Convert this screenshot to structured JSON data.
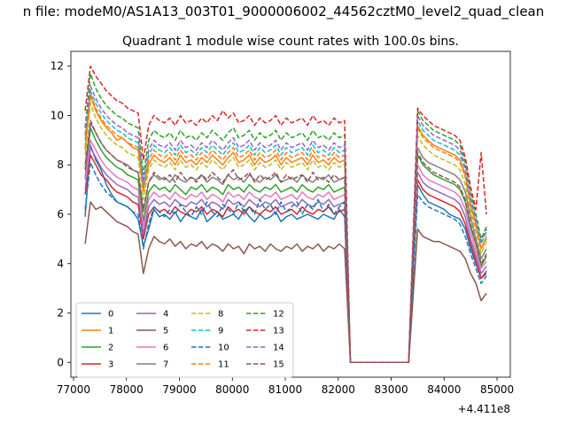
{
  "suptitle": "n file: modeM0/AS1A13_003T01_9000006002_44562cztM0_level2_quad_clean",
  "chart_data": {
    "type": "line",
    "title": "Quadrant 1 module wise count rates with 100.0s bins.",
    "xlabel": "",
    "ylabel": "",
    "x_offset_label": "+4.411e8",
    "xlim": [
      76950,
      85250
    ],
    "ylim": [
      -0.6,
      12.6
    ],
    "x_ticks": [
      77000,
      78000,
      79000,
      80000,
      81000,
      82000,
      83000,
      84000,
      85000
    ],
    "x_tick_labels": [
      "77000",
      "78000",
      "79000",
      "80000",
      "81000",
      "82000",
      "83000",
      "84000",
      "85000"
    ],
    "y_ticks": [
      0,
      2,
      4,
      6,
      8,
      10,
      12
    ],
    "y_tick_labels": [
      "0",
      "2",
      "4",
      "6",
      "8",
      "10",
      "12"
    ],
    "grid": false,
    "legend_position": "lower-left",
    "legend_columns": 4,
    "x": {
      "first_segment": [
        77220,
        82150,
        100
      ],
      "gap": [
        82230,
        83330
      ],
      "second_segment": [
        83500,
        84850,
        100
      ]
    },
    "series": [
      {
        "name": "0",
        "color": "#1f77b4",
        "dash": "solid",
        "seg1": [
          5.9,
          8.8,
          8.2,
          7.8,
          7.2,
          6.8,
          6.5,
          6.4,
          6.3,
          6.1,
          5.8,
          4.7,
          5.4,
          6.2,
          5.9,
          6.0,
          5.8,
          6.1,
          5.7,
          6.0,
          5.9,
          5.8,
          6.2,
          5.7,
          5.9,
          6.1,
          5.8,
          5.9,
          6.0,
          5.8,
          6.2,
          5.9,
          5.7,
          6.0,
          5.8,
          5.9,
          6.1,
          5.7,
          5.9,
          6.0,
          5.8,
          5.9,
          6.0,
          5.9,
          5.8,
          6.0,
          5.9,
          5.8,
          6.2,
          5.9
        ],
        "seg2": [
          7.2,
          6.8,
          6.5,
          6.4,
          6.3,
          6.2,
          6.0,
          5.9,
          5.8,
          5.4,
          4.6,
          4.0,
          3.4,
          3.6
        ]
      },
      {
        "name": "1",
        "color": "#ff7f0e",
        "dash": "solid",
        "seg1": [
          8.6,
          10.8,
          10.2,
          9.8,
          9.5,
          9.3,
          9.0,
          9.1,
          8.9,
          8.7,
          8.6,
          7.0,
          8.0,
          8.4,
          8.2,
          8.1,
          8.3,
          8.0,
          8.4,
          8.1,
          8.2,
          8.0,
          8.3,
          8.1,
          8.4,
          8.2,
          8.0,
          8.3,
          8.5,
          8.1,
          8.2,
          8.4,
          8.0,
          8.3,
          8.1,
          8.2,
          8.4,
          8.0,
          8.3,
          8.1,
          8.2,
          8.3,
          8.0,
          8.4,
          8.1,
          8.2,
          8.0,
          8.3,
          8.1,
          8.2
        ],
        "seg2": [
          9.6,
          9.2,
          9.0,
          8.8,
          8.7,
          8.6,
          8.5,
          8.4,
          8.2,
          7.6,
          6.4,
          5.6,
          4.6,
          5.1
        ]
      },
      {
        "name": "2",
        "color": "#2ca02c",
        "dash": "solid",
        "seg1": [
          7.5,
          9.5,
          9.0,
          8.6,
          8.3,
          8.1,
          7.9,
          7.8,
          7.6,
          7.5,
          7.4,
          5.7,
          6.9,
          7.2,
          7.0,
          7.1,
          6.9,
          7.2,
          7.0,
          6.8,
          7.1,
          7.0,
          7.2,
          6.9,
          7.1,
          7.0,
          6.8,
          7.2,
          7.0,
          7.1,
          6.9,
          7.2,
          7.0,
          6.9,
          7.1,
          7.0,
          7.2,
          6.9,
          7.0,
          7.1,
          6.9,
          7.2,
          7.0,
          6.9,
          7.1,
          7.0,
          7.2,
          6.9,
          7.0,
          7.1
        ],
        "seg2": [
          8.4,
          8.0,
          7.8,
          7.6,
          7.5,
          7.4,
          7.3,
          7.2,
          7.0,
          6.5,
          5.5,
          4.8,
          3.9,
          4.3
        ]
      },
      {
        "name": "3",
        "color": "#d62728",
        "dash": "solid",
        "seg1": [
          6.8,
          8.4,
          8.0,
          7.6,
          7.4,
          7.1,
          6.9,
          6.8,
          6.7,
          6.5,
          6.4,
          5.0,
          6.0,
          6.3,
          6.1,
          6.2,
          6.0,
          6.3,
          6.1,
          6.0,
          6.2,
          6.1,
          6.3,
          6.0,
          6.2,
          6.1,
          5.9,
          6.3,
          6.1,
          6.2,
          6.0,
          6.3,
          6.1,
          6.0,
          6.2,
          6.1,
          6.3,
          6.0,
          6.1,
          6.2,
          6.0,
          6.3,
          6.1,
          6.0,
          6.2,
          6.1,
          6.3,
          6.0,
          6.1,
          6.2
        ],
        "seg2": [
          7.4,
          7.0,
          6.8,
          6.7,
          6.6,
          6.5,
          6.4,
          6.3,
          6.1,
          5.6,
          4.8,
          4.1,
          3.4,
          3.7
        ]
      },
      {
        "name": "4",
        "color": "#9467bd",
        "dash": "solid",
        "seg1": [
          7.0,
          8.7,
          8.3,
          7.9,
          7.6,
          7.4,
          7.2,
          7.1,
          7.0,
          6.8,
          6.7,
          5.2,
          6.3,
          6.6,
          6.4,
          6.5,
          6.3,
          6.6,
          6.4,
          6.3,
          6.5,
          6.4,
          6.6,
          6.3,
          6.5,
          6.4,
          6.2,
          6.6,
          6.4,
          6.5,
          6.3,
          6.6,
          6.4,
          6.3,
          6.5,
          6.4,
          6.6,
          6.3,
          6.4,
          6.5,
          6.3,
          6.6,
          6.4,
          6.3,
          6.5,
          6.4,
          6.6,
          6.3,
          6.4,
          6.5
        ],
        "seg2": [
          7.7,
          7.3,
          7.1,
          7.0,
          6.9,
          6.8,
          6.7,
          6.6,
          6.4,
          5.9,
          5.0,
          4.3,
          3.6,
          3.9
        ]
      },
      {
        "name": "5",
        "color": "#8c564b",
        "dash": "solid",
        "seg1": [
          4.8,
          6.5,
          6.2,
          6.3,
          6.1,
          5.9,
          5.7,
          5.6,
          5.5,
          5.3,
          5.2,
          3.6,
          4.6,
          5.1,
          4.9,
          4.8,
          5.0,
          4.7,
          4.9,
          4.6,
          4.8,
          4.7,
          4.9,
          4.6,
          4.8,
          4.7,
          4.5,
          4.8,
          4.6,
          4.7,
          4.4,
          4.8,
          4.6,
          4.7,
          4.5,
          4.8,
          4.6,
          4.5,
          4.7,
          4.6,
          4.8,
          4.5,
          4.7,
          4.6,
          4.8,
          4.5,
          4.7,
          4.6,
          4.8,
          4.6
        ],
        "seg2": [
          5.4,
          5.1,
          5.0,
          4.9,
          4.9,
          4.8,
          4.7,
          4.6,
          4.5,
          4.2,
          3.6,
          3.2,
          2.5,
          2.8
        ]
      },
      {
        "name": "6",
        "color": "#e377c2",
        "dash": "solid",
        "seg1": [
          7.4,
          9.0,
          8.6,
          8.2,
          7.9,
          7.7,
          7.5,
          7.4,
          7.3,
          7.1,
          7.0,
          5.5,
          6.6,
          6.9,
          6.7,
          6.8,
          6.6,
          6.9,
          6.7,
          6.6,
          6.8,
          6.7,
          6.9,
          6.6,
          6.8,
          6.7,
          6.5,
          6.9,
          6.7,
          6.8,
          6.6,
          6.9,
          6.7,
          6.6,
          6.8,
          6.7,
          6.9,
          6.6,
          6.7,
          6.8,
          6.6,
          6.9,
          6.7,
          6.6,
          6.8,
          6.7,
          6.9,
          6.6,
          6.7,
          6.8
        ],
        "seg2": [
          8.0,
          7.6,
          7.4,
          7.3,
          7.2,
          7.1,
          7.0,
          6.9,
          6.7,
          6.2,
          5.3,
          4.5,
          3.8,
          4.1
        ]
      },
      {
        "name": "7",
        "color": "#7f7f7f",
        "dash": "solid",
        "seg1": [
          8.0,
          9.7,
          9.3,
          8.9,
          8.6,
          8.4,
          8.2,
          8.1,
          8.0,
          7.8,
          7.7,
          6.1,
          7.3,
          7.6,
          7.4,
          7.5,
          7.3,
          7.6,
          7.4,
          7.3,
          7.5,
          7.4,
          7.6,
          7.3,
          7.5,
          7.4,
          7.2,
          7.6,
          7.4,
          7.5,
          7.3,
          7.6,
          7.4,
          7.3,
          7.5,
          7.4,
          7.6,
          7.3,
          7.4,
          7.5,
          7.3,
          7.6,
          7.4,
          7.3,
          7.5,
          7.4,
          7.6,
          7.3,
          7.4,
          7.5
        ],
        "seg2": [
          8.7,
          8.3,
          8.1,
          8.0,
          7.9,
          7.8,
          7.7,
          7.6,
          7.4,
          6.9,
          5.9,
          5.0,
          4.2,
          4.6
        ]
      },
      {
        "name": "8",
        "color": "#bcbd22",
        "dash": "dashed",
        "seg1": [
          8.4,
          10.5,
          9.9,
          9.5,
          9.2,
          9.0,
          8.8,
          8.7,
          8.5,
          8.4,
          8.3,
          6.6,
          7.8,
          8.2,
          8.0,
          7.9,
          8.1,
          7.8,
          8.2,
          7.9,
          8.0,
          7.8,
          8.1,
          7.9,
          8.2,
          8.0,
          7.8,
          8.1,
          8.3,
          7.9,
          8.0,
          8.2,
          7.8,
          8.1,
          7.9,
          8.0,
          8.2,
          7.8,
          8.1,
          7.9,
          8.0,
          8.1,
          7.8,
          8.2,
          7.9,
          8.0,
          7.8,
          8.1,
          7.9,
          8.0
        ],
        "seg2": [
          9.2,
          8.8,
          8.6,
          8.4,
          8.3,
          8.2,
          8.1,
          8.0,
          7.8,
          7.2,
          6.1,
          5.3,
          4.4,
          4.9
        ]
      },
      {
        "name": "9",
        "color": "#17becf",
        "dash": "dashed",
        "seg1": [
          9.0,
          11.0,
          10.5,
          10.1,
          9.8,
          9.6,
          9.4,
          9.3,
          9.1,
          9.0,
          8.9,
          7.1,
          8.4,
          8.8,
          8.6,
          8.5,
          8.7,
          8.4,
          8.8,
          8.5,
          8.6,
          8.4,
          8.7,
          8.5,
          8.8,
          8.6,
          8.4,
          8.7,
          8.9,
          8.5,
          8.6,
          8.8,
          8.4,
          8.7,
          8.5,
          8.6,
          8.8,
          8.4,
          8.7,
          8.5,
          8.6,
          8.7,
          8.4,
          8.8,
          8.5,
          8.6,
          8.4,
          8.7,
          8.5,
          8.6
        ],
        "seg2": [
          9.8,
          9.4,
          9.2,
          9.0,
          8.9,
          8.8,
          8.7,
          8.6,
          8.4,
          7.8,
          6.6,
          5.7,
          4.8,
          5.3
        ]
      },
      {
        "name": "10",
        "color": "#1f77b4",
        "dash": "dashed",
        "seg1": [
          6.2,
          8.1,
          7.6,
          7.2,
          6.9,
          6.7,
          6.5,
          6.4,
          6.3,
          6.1,
          6.0,
          4.6,
          5.6,
          6.3,
          6.1,
          5.9,
          6.2,
          6.0,
          6.4,
          6.1,
          5.9,
          6.3,
          6.0,
          6.5,
          6.1,
          5.9,
          6.4,
          6.2,
          6.0,
          6.5,
          6.1,
          6.3,
          6.0,
          6.6,
          6.2,
          6.4,
          6.0,
          6.5,
          6.1,
          6.3,
          6.5,
          6.0,
          6.4,
          6.2,
          6.6,
          6.1,
          6.4,
          6.0,
          6.3,
          6.5
        ],
        "seg2": [
          6.8,
          6.5,
          6.3,
          6.2,
          6.1,
          6.0,
          5.9,
          5.8,
          5.6,
          5.1,
          4.4,
          3.8,
          3.2,
          3.5
        ]
      },
      {
        "name": "11",
        "color": "#ff7f0e",
        "dash": "dashed",
        "seg1": [
          8.7,
          10.9,
          10.3,
          9.9,
          9.6,
          9.4,
          9.2,
          9.1,
          8.9,
          8.8,
          8.7,
          6.9,
          8.2,
          8.6,
          8.4,
          8.3,
          8.5,
          8.2,
          8.6,
          8.3,
          8.4,
          8.2,
          8.5,
          8.3,
          8.6,
          8.4,
          8.2,
          8.5,
          8.7,
          8.3,
          8.4,
          8.6,
          8.2,
          8.5,
          8.3,
          8.4,
          8.6,
          8.2,
          8.5,
          8.3,
          8.4,
          8.5,
          8.2,
          8.6,
          8.3,
          8.4,
          8.2,
          8.5,
          8.3,
          8.4
        ],
        "seg2": [
          9.5,
          9.1,
          8.9,
          8.7,
          8.6,
          8.5,
          8.4,
          8.3,
          8.1,
          7.5,
          6.3,
          5.5,
          4.6,
          5.0
        ]
      },
      {
        "name": "12",
        "color": "#2ca02c",
        "dash": "dashed",
        "seg1": [
          9.5,
          11.7,
          11.1,
          10.7,
          10.4,
          10.2,
          10.0,
          9.9,
          9.7,
          9.6,
          9.5,
          7.6,
          9.0,
          9.4,
          9.2,
          9.1,
          9.3,
          9.0,
          9.4,
          9.1,
          9.2,
          9.0,
          9.3,
          9.1,
          9.4,
          9.2,
          9.0,
          9.3,
          9.5,
          9.1,
          9.2,
          9.4,
          9.0,
          9.3,
          9.1,
          9.2,
          9.4,
          9.0,
          9.3,
          9.1,
          9.2,
          9.3,
          9.0,
          9.4,
          9.1,
          9.2,
          9.0,
          9.3,
          9.1,
          9.2
        ],
        "seg2": [
          10.2,
          9.8,
          9.6,
          9.4,
          9.3,
          9.2,
          9.1,
          9.0,
          8.8,
          8.1,
          6.9,
          6.0,
          5.0,
          5.5
        ]
      },
      {
        "name": "13",
        "color": "#d62728",
        "dash": "dashed",
        "seg1": [
          10.2,
          12.0,
          11.6,
          11.3,
          11.0,
          10.8,
          10.6,
          10.5,
          10.3,
          10.2,
          10.1,
          8.2,
          9.6,
          10.0,
          9.8,
          9.7,
          9.9,
          9.6,
          10.0,
          9.7,
          9.8,
          9.6,
          9.9,
          9.7,
          10.0,
          9.8,
          10.2,
          9.9,
          10.1,
          9.7,
          9.8,
          10.0,
          9.6,
          9.9,
          9.7,
          9.8,
          10.0,
          9.6,
          9.9,
          9.7,
          9.8,
          9.9,
          9.6,
          10.0,
          9.7,
          9.8,
          9.6,
          9.9,
          9.7,
          9.8
        ],
        "seg2": [
          10.3,
          10.0,
          9.8,
          9.6,
          9.5,
          9.4,
          9.3,
          9.2,
          9.0,
          8.3,
          7.1,
          6.2,
          8.5,
          6.0
        ]
      },
      {
        "name": "14",
        "color": "#9467bd",
        "dash": "dashed",
        "seg1": [
          9.2,
          11.2,
          10.7,
          10.3,
          10.0,
          9.8,
          9.6,
          9.5,
          9.3,
          9.2,
          9.1,
          7.3,
          8.6,
          9.0,
          8.8,
          8.7,
          8.9,
          8.6,
          9.0,
          8.7,
          8.8,
          8.6,
          8.9,
          8.7,
          9.0,
          8.8,
          8.6,
          8.9,
          9.1,
          8.7,
          8.8,
          9.0,
          8.6,
          8.9,
          8.7,
          8.8,
          9.0,
          8.6,
          8.9,
          8.7,
          8.8,
          8.9,
          8.6,
          9.0,
          8.7,
          8.8,
          8.6,
          8.9,
          8.7,
          8.8
        ],
        "seg2": [
          10.0,
          9.6,
          9.4,
          9.2,
          9.1,
          9.0,
          8.9,
          8.8,
          8.6,
          7.9,
          6.7,
          5.8,
          4.9,
          5.4
        ]
      },
      {
        "name": "15",
        "color": "#8c564b",
        "dash": "dashed",
        "seg1": [
          7.8,
          9.8,
          9.3,
          8.9,
          8.6,
          8.4,
          8.2,
          8.1,
          7.9,
          7.8,
          7.7,
          6.2,
          7.3,
          7.7,
          7.5,
          7.4,
          7.6,
          7.3,
          7.7,
          7.4,
          7.5,
          7.3,
          7.6,
          7.4,
          7.7,
          7.5,
          7.3,
          7.6,
          7.8,
          7.4,
          7.5,
          7.7,
          7.3,
          7.6,
          7.4,
          7.5,
          7.7,
          7.3,
          7.6,
          7.4,
          7.5,
          7.6,
          7.3,
          7.7,
          7.4,
          7.5,
          7.3,
          7.6,
          7.4,
          7.5
        ],
        "seg2": [
          8.5,
          8.1,
          7.9,
          7.7,
          7.6,
          7.5,
          7.4,
          7.3,
          7.1,
          6.6,
          5.6,
          4.8,
          4.0,
          4.4
        ]
      }
    ]
  }
}
